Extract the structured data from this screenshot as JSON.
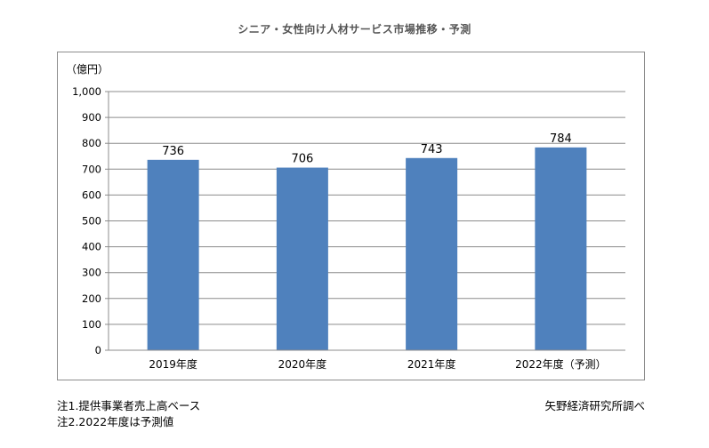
{
  "title": "シニア・女性向け人材サービス市場推移・予測",
  "notes": {
    "note1": "注1.提供事業者売上高ベース",
    "note2": "注2.2022年度は予測値"
  },
  "source": "矢野経済研究所調べ",
  "chart_data": {
    "type": "bar",
    "title": "シニア・女性向け人材サービス市場推移・予測",
    "ylabel": "（億円）",
    "xlabel": "",
    "categories": [
      "2019年度",
      "2020年度",
      "2021年度",
      "2022年度（予測）"
    ],
    "values": [
      736,
      706,
      743,
      784
    ],
    "ylim": [
      0,
      1000
    ],
    "yticks": [
      0,
      100,
      200,
      300,
      400,
      500,
      600,
      700,
      800,
      900,
      1000
    ],
    "ytick_labels": [
      "0",
      "100",
      "200",
      "300",
      "400",
      "500",
      "600",
      "700",
      "800",
      "900",
      "1,000"
    ],
    "data_labels": [
      "736",
      "706",
      "743",
      "784"
    ],
    "grid": true,
    "bar_color": "#4f81bd",
    "grid_color": "#8c8c8c"
  }
}
